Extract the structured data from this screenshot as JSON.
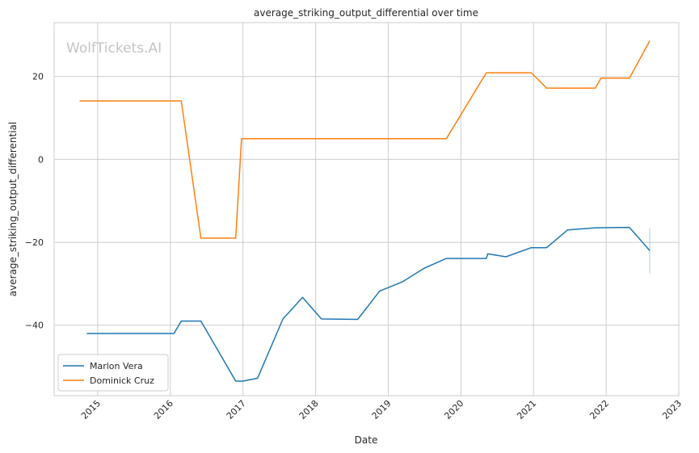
{
  "chart_data": {
    "type": "line",
    "title": "average_striking_output_differential over time",
    "xlabel": "Date",
    "ylabel": "average_striking_output_differential",
    "watermark": "WolfTickets.AI",
    "x_ticks": [
      "2015",
      "2016",
      "2017",
      "2018",
      "2019",
      "2020",
      "2021",
      "2022",
      "2023"
    ],
    "y_ticks": [
      20,
      0,
      -20,
      -40
    ],
    "xlim": [
      2014.4,
      2023.0
    ],
    "ylim": [
      -57,
      33
    ],
    "grid": true,
    "legend_position": "lower-left",
    "series": [
      {
        "name": "Marlon Vera",
        "color": "#1f77b4",
        "points": [
          [
            2014.85,
            -42.0
          ],
          [
            2016.05,
            -42.0
          ],
          [
            2016.15,
            -39.0
          ],
          [
            2016.42,
            -39.0
          ],
          [
            2016.9,
            -53.5
          ],
          [
            2017.0,
            -53.5
          ],
          [
            2017.2,
            -52.8
          ],
          [
            2017.55,
            -38.5
          ],
          [
            2017.82,
            -33.3
          ],
          [
            2018.08,
            -38.5
          ],
          [
            2018.58,
            -38.6
          ],
          [
            2018.88,
            -31.8
          ],
          [
            2019.2,
            -29.5
          ],
          [
            2019.5,
            -26.2
          ],
          [
            2019.8,
            -23.9
          ],
          [
            2020.35,
            -23.9
          ],
          [
            2020.37,
            -22.8
          ],
          [
            2020.62,
            -23.5
          ],
          [
            2020.97,
            -21.3
          ],
          [
            2021.18,
            -21.3
          ],
          [
            2021.47,
            -17.0
          ],
          [
            2021.85,
            -16.5
          ],
          [
            2022.32,
            -16.4
          ],
          [
            2022.6,
            -22.0
          ]
        ]
      },
      {
        "name": "Dominick Cruz",
        "color": "#ff7f0e",
        "points": [
          [
            2014.75,
            14.1
          ],
          [
            2016.15,
            14.1
          ],
          [
            2016.42,
            -19.0
          ],
          [
            2016.9,
            -19.0
          ],
          [
            2016.98,
            5.0
          ],
          [
            2019.8,
            5.0
          ],
          [
            2020.35,
            20.9
          ],
          [
            2020.97,
            20.9
          ],
          [
            2021.18,
            17.2
          ],
          [
            2021.85,
            17.2
          ],
          [
            2021.93,
            19.6
          ],
          [
            2022.32,
            19.6
          ],
          [
            2022.6,
            28.6
          ]
        ]
      }
    ],
    "error_bar": {
      "x": 2022.6,
      "y_low": -27.6,
      "y_high": -16.5,
      "color": "#1f77b4"
    }
  }
}
